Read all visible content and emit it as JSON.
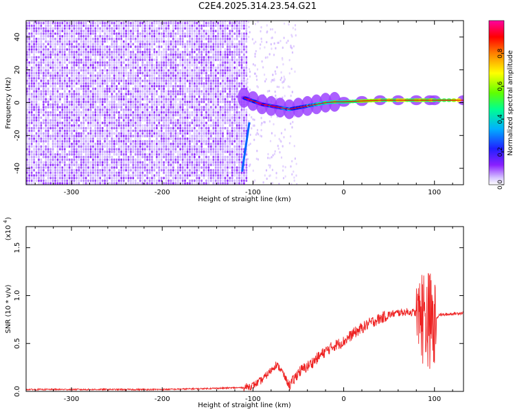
{
  "title": "C2E4.2025.314.23.54.G21",
  "chart_data": [
    {
      "type": "heatmap",
      "title": "C2E4.2025.314.23.54.G21",
      "xlabel": "Height of straight line (km)",
      "ylabel": "Frequency (Hz)",
      "xlim": [
        -350,
        132
      ],
      "ylim": [
        -50,
        50
      ],
      "xticks": [
        -300,
        -200,
        -100,
        0,
        100
      ],
      "yticks": [
        -40,
        -20,
        0,
        20,
        40
      ],
      "colorbar": {
        "label": "Normalized spectral amplitude",
        "range": [
          0.0,
          1.0
        ],
        "ticks": [
          0.0,
          0.2,
          0.4,
          0.6,
          0.8
        ],
        "colors": [
          "#ffffff",
          "#c8a8ff",
          "#7f00ff",
          "#0000ff",
          "#00c8ff",
          "#00ff80",
          "#80ff00",
          "#ffff00",
          "#ff8000",
          "#ff0000",
          "#ff00a0"
        ]
      },
      "noise_region_km": [
        -350,
        -107
      ],
      "signal_track": {
        "x": [
          -110,
          -100,
          -90,
          -80,
          -70,
          -60,
          -50,
          -40,
          -30,
          -20,
          -10,
          0,
          20,
          40,
          60,
          80,
          95,
          100,
          132
        ],
        "frequency": [
          3,
          1,
          -1,
          -2,
          -3,
          -4,
          -3,
          -2,
          -1,
          0,
          0.5,
          0.5,
          1,
          1.5,
          1.5,
          1.5,
          1.5,
          1.5,
          1.5
        ],
        "amplitude": [
          0.3,
          0.35,
          0.35,
          0.4,
          0.4,
          0.45,
          0.45,
          0.5,
          0.6,
          0.7,
          0.75,
          0.75,
          0.85,
          0.9,
          0.92,
          0.95,
          0.9,
          0.95,
          1.0
        ]
      },
      "streak": {
        "x": [
          -104,
          -112
        ],
        "frequency": [
          -12,
          -42
        ],
        "amplitude": 0.35
      }
    },
    {
      "type": "line",
      "xlabel": "Height of straight line (km)",
      "ylabel": "SNR (10 * v/v)",
      "yscale_label": "(x10",
      "yscale_exponent": "4",
      "xlim": [
        -350,
        132
      ],
      "ylim": [
        0,
        1.72
      ],
      "xticks": [
        -300,
        -200,
        -100,
        0,
        100
      ],
      "yticks": [
        "0.0",
        "0.5",
        "1.0",
        "1.5"
      ],
      "series": [
        {
          "name": "SNR",
          "color": "#ee2222",
          "x": [
            -350,
            -300,
            -250,
            -200,
            -150,
            -110,
            -100,
            -90,
            -80,
            -75,
            -70,
            -60,
            -55,
            -50,
            -40,
            -30,
            -20,
            -10,
            0,
            10,
            20,
            30,
            40,
            50,
            60,
            70,
            80,
            85,
            90,
            95,
            98,
            100,
            102,
            105,
            110,
            120,
            132
          ],
          "values": [
            0.02,
            0.02,
            0.02,
            0.02,
            0.03,
            0.04,
            0.06,
            0.12,
            0.22,
            0.28,
            0.24,
            0.06,
            0.12,
            0.2,
            0.26,
            0.34,
            0.42,
            0.48,
            0.52,
            0.6,
            0.66,
            0.72,
            0.76,
            0.8,
            0.82,
            0.83,
            0.82,
            0.8,
            0.78,
            0.75,
            0.7,
            0.6,
            0.76,
            0.8,
            0.8,
            0.81,
            0.82
          ]
        }
      ]
    }
  ]
}
